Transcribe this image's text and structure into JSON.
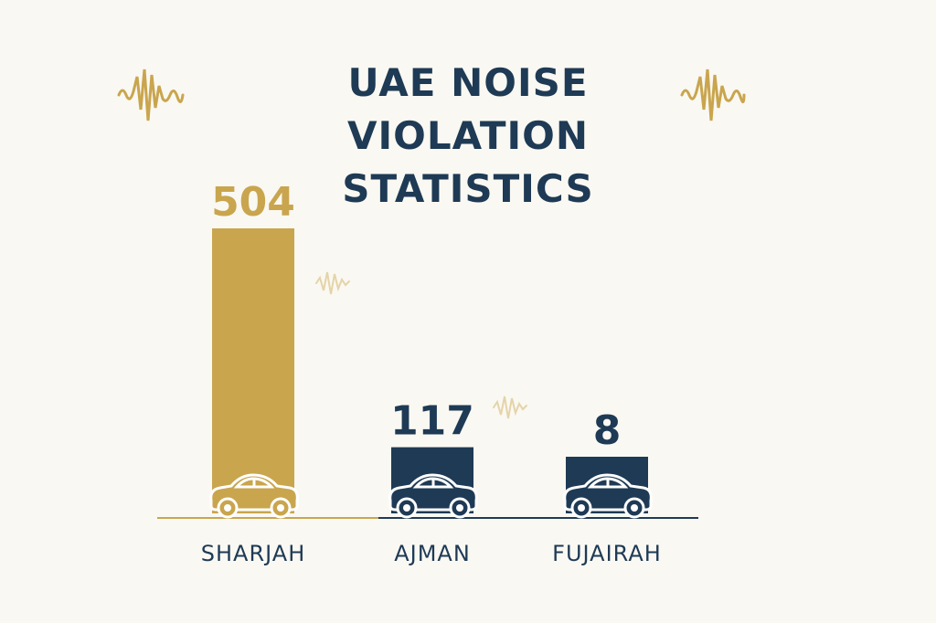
{
  "chart_data": {
    "type": "bar",
    "title_line1": "UAE NOISE VIOLATION",
    "title_line2": "STATISTICS",
    "categories": [
      "SHARJAH",
      "AJMAN",
      "FUJAIRAH"
    ],
    "values": [
      504,
      117,
      8
    ],
    "value_labels": [
      "504",
      "117",
      "8"
    ],
    "bar_colors": [
      "#c9a54e",
      "#1e3a55",
      "#1e3a55"
    ],
    "icons": [
      "car-icon",
      "car-icon",
      "car-icon"
    ],
    "xlabel": "",
    "ylabel": "",
    "grid": false,
    "legend": "none"
  },
  "colors": {
    "gold": "#c9a54e",
    "navy": "#1e3a55",
    "background": "#faf8f2"
  }
}
